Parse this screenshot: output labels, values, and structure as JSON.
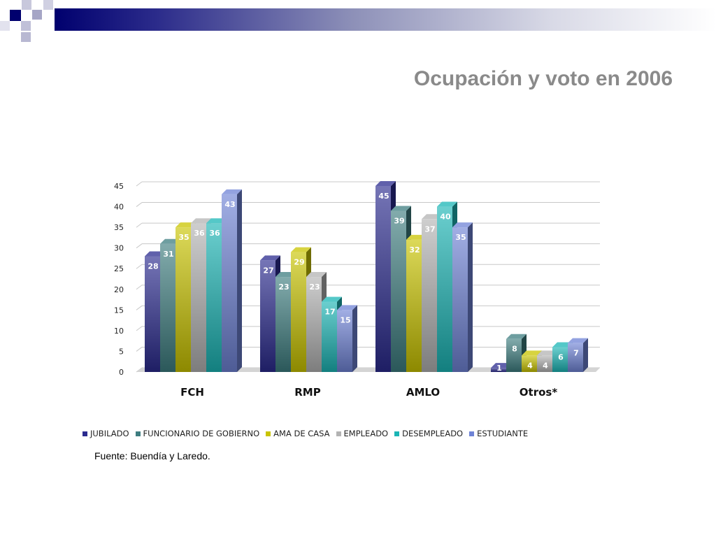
{
  "slide": {
    "title": "Ocupación y voto en 2006",
    "source_note": "Fuente: Buendía y Laredo."
  },
  "colors": {
    "header_band_dark": "#00006e",
    "title_gray": "#8a8a8a"
  },
  "chart_data": {
    "type": "bar",
    "title": "",
    "xlabel": "",
    "ylabel": "",
    "ylim": [
      0,
      45
    ],
    "yticks": [
      0,
      5,
      10,
      15,
      20,
      25,
      30,
      35,
      40,
      45
    ],
    "grid": true,
    "legend_position": "bottom",
    "categories": [
      "FCH",
      "RMP",
      "AMLO",
      "Otros*"
    ],
    "series": [
      {
        "name": "JUBILADO",
        "values": [
          28,
          27,
          45,
          1
        ],
        "color": "#2b2b8f"
      },
      {
        "name": "FUNCIONARIO DE GOBIERNO",
        "values": [
          31,
          23,
          39,
          8
        ],
        "color": "#3e7d80"
      },
      {
        "name": "AMA DE CASA",
        "values": [
          35,
          29,
          32,
          4
        ],
        "color": "#c9c400"
      },
      {
        "name": "EMPLEADO",
        "values": [
          36,
          23,
          37,
          4
        ],
        "color": "#b3b3b3"
      },
      {
        "name": "DESEMPLEADO",
        "values": [
          36,
          17,
          40,
          6
        ],
        "color": "#1bb5b5"
      },
      {
        "name": "ESTUDIANTE",
        "values": [
          43,
          15,
          35,
          7
        ],
        "color": "#6f83d6"
      }
    ]
  }
}
